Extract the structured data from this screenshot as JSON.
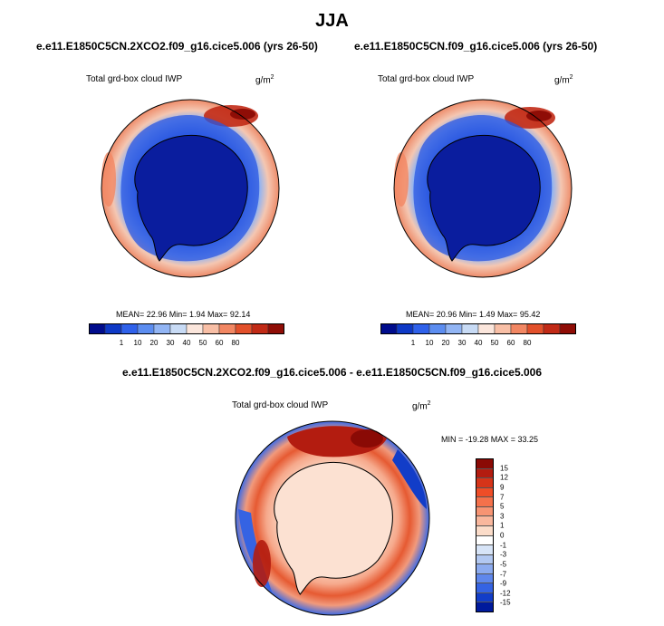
{
  "season": "JJA",
  "panels": {
    "left": {
      "title": "e.e11.E1850C5CN.2XCO2.f09_g16.cice5.006 (yrs 26-50)",
      "variable": "Total grd-box cloud IWP",
      "units_base": "g/m",
      "units_exp": "2",
      "stats": "MEAN=  22.96  Min=   1.94  Max=  92.14"
    },
    "right": {
      "title": "e.e11.E1850C5CN.f09_g16.cice5.006 (yrs 26-50)",
      "variable": "Total grd-box cloud IWP",
      "units_base": "g/m",
      "units_exp": "2",
      "stats": "MEAN=  20.96  Min=   1.49  Max=  95.42"
    },
    "diff": {
      "title": "e.e11.E1850C5CN.2XCO2.f09_g16.cice5.006 - e.e11.E1850C5CN.f09_g16.cice5.006",
      "variable": "Total grd-box cloud IWP",
      "units_base": "g/m",
      "units_exp": "2",
      "stats": "MIN = -19.28 MAX =  33.25"
    }
  },
  "colorbar_abs": {
    "labels": [
      "1",
      "10",
      "20",
      "30",
      "40",
      "50",
      "60",
      "80"
    ],
    "colors": [
      "#000c8c",
      "#0e39c6",
      "#2f61ea",
      "#5c8df0",
      "#92b5f4",
      "#c8dbf5",
      "#fbe6dc",
      "#f8bfa6",
      "#f28763",
      "#e2502b",
      "#c12a16",
      "#8f0d06"
    ]
  },
  "colorbar_diff": {
    "labels": [
      "15",
      "12",
      "9",
      "7",
      "5",
      "3",
      "1",
      "0",
      "-1",
      "-3",
      "-5",
      "-7",
      "-9",
      "-12",
      "-15"
    ],
    "colors": [
      "#8a0a05",
      "#b31c10",
      "#d63419",
      "#ef4d27",
      "#f4714b",
      "#f79473",
      "#f9b79d",
      "#fbdcc9",
      "#ffffff",
      "#d7e4f7",
      "#b2c8f1",
      "#8cabef",
      "#5f87ec",
      "#3563e3",
      "#123dc8",
      "#001a9c"
    ]
  },
  "chart_data": {
    "type": "heatmap",
    "projection": "South Polar stereographic",
    "season": "JJA",
    "variable": "Total grd-box cloud IWP",
    "units": "g/m^2",
    "maps": [
      {
        "name": "e.e11.E1850C5CN.2XCO2.f09_g16.cice5.006 (yrs 26-50)",
        "mean": 22.96,
        "min": 1.94,
        "max": 92.14,
        "contour_levels": [
          1,
          5,
          10,
          15,
          20,
          25,
          30,
          35,
          40,
          50,
          60,
          70,
          80
        ]
      },
      {
        "name": "e.e11.E1850C5CN.f09_g16.cice5.006 (yrs 26-50)",
        "mean": 20.96,
        "min": 1.49,
        "max": 95.42,
        "contour_levels": [
          1,
          5,
          10,
          15,
          20,
          25,
          30,
          35,
          40,
          50,
          60,
          70,
          80
        ]
      },
      {
        "name": "e.e11.E1850C5CN.2XCO2.f09_g16.cice5.006 - e.e11.E1850C5CN.f09_g16.cice5.006",
        "min": -19.28,
        "max": 33.25,
        "contour_levels": [
          -15,
          -12,
          -9,
          -7,
          -5,
          -3,
          -1,
          0,
          1,
          3,
          5,
          7,
          9,
          12,
          15
        ]
      }
    ]
  }
}
